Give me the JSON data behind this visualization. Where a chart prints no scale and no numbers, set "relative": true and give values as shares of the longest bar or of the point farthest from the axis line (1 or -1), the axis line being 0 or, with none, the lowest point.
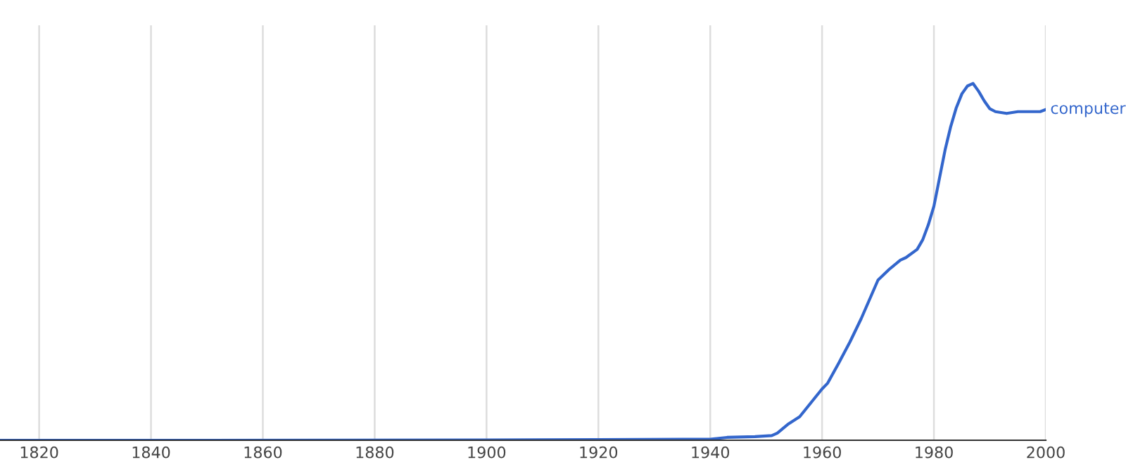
{
  "chart_data": {
    "type": "line",
    "relative": true,
    "xlim": [
      1813,
      2000
    ],
    "xticks": [
      1820,
      1840,
      1860,
      1880,
      1900,
      1920,
      1940,
      1960,
      1980,
      2000
    ],
    "grid": "x",
    "line_style": "solid",
    "tick_labels": "x",
    "series": [
      {
        "name": "computer",
        "color": "#3366cc",
        "x": [
          1813,
          1850,
          1900,
          1920,
          1935,
          1940,
          1943,
          1948,
          1951,
          1952,
          1954,
          1956,
          1958,
          1960,
          1961,
          1963,
          1965,
          1967,
          1969,
          1970,
          1972,
          1974,
          1975,
          1977,
          1978,
          1979,
          1980,
          1981,
          1982,
          1983,
          1984,
          1985,
          1986,
          1987,
          1988,
          1989,
          1990,
          1991,
          1993,
          1995,
          1997,
          1999,
          2000
        ],
        "values": [
          0,
          0,
          0.001,
          0.002,
          0.003,
          0.003,
          0.008,
          0.01,
          0.013,
          0.02,
          0.046,
          0.066,
          0.105,
          0.144,
          0.16,
          0.217,
          0.276,
          0.341,
          0.413,
          0.449,
          0.479,
          0.505,
          0.512,
          0.535,
          0.562,
          0.604,
          0.656,
          0.735,
          0.814,
          0.879,
          0.932,
          0.971,
          0.993,
          1.0,
          0.978,
          0.951,
          0.929,
          0.921,
          0.916,
          0.921,
          0.921,
          0.921,
          0.927
        ]
      }
    ]
  }
}
